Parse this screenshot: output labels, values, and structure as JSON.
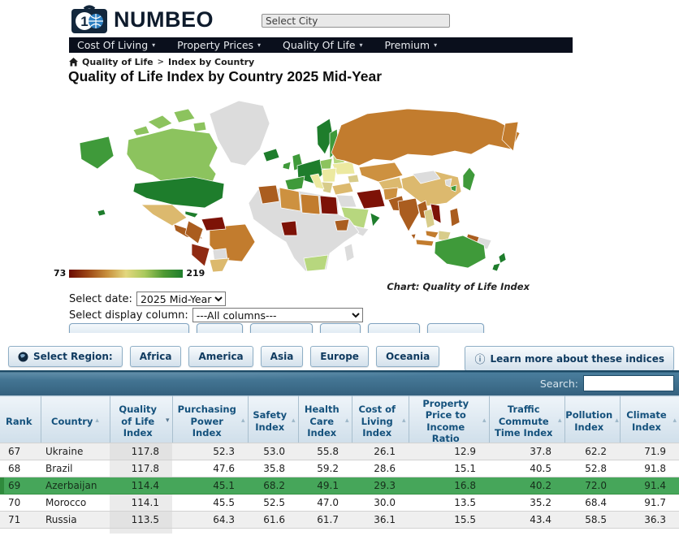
{
  "header": {
    "brand": "NUMBEO",
    "city_placeholder": "Select City"
  },
  "nav": {
    "items": [
      "Cost Of Living",
      "Property Prices",
      "Quality Of Life",
      "Premium"
    ]
  },
  "breadcrumb": {
    "items": [
      "Quality of Life",
      "Index by Country"
    ],
    "separator": ">"
  },
  "page": {
    "title": "Quality of Life Index by Country 2025 Mid-Year"
  },
  "map": {
    "caption": "Chart: Quality of Life Index",
    "legend": {
      "min": "73",
      "max": "219",
      "stops": [
        "#6b0b02",
        "#9c4716",
        "#c78f3c",
        "#e3d77e",
        "#a9c95c",
        "#4f9a33",
        "#1e7d2c"
      ]
    },
    "palette": {
      "dgreen": "#1e7d2c",
      "green": "#3f9a3a",
      "lgreen": "#8cc35e",
      "pgreen": "#b7d77e",
      "pyellow": "#ece9a0",
      "khaki": "#d8cc8a",
      "tan": "#dcb96e",
      "lorange": "#cd9140",
      "orange": "#c27c2e",
      "dorange": "#aa5d1f",
      "dred": "#7d1207",
      "maroon": "#8f2a12",
      "gray": "#dcdcdc"
    }
  },
  "controls": {
    "date_label": "Select date:",
    "date_value": "2025 Mid-Year",
    "column_label": "Select display column:",
    "column_value": "---All columns---"
  },
  "region_bar": {
    "label": "Select Region:",
    "buttons": [
      "Africa",
      "America",
      "Asia",
      "Europe",
      "Oceania"
    ],
    "learn_more": "Learn more about these indices"
  },
  "table": {
    "search_label": "Search:",
    "cell_names": [
      "rank",
      "country",
      "quality-of-life",
      "purchasing-power",
      "safety",
      "health-care",
      "cost-of-living",
      "property-price-income",
      "traffic-commute",
      "pollution",
      "climate"
    ],
    "columns": [
      {
        "label": "Rank",
        "arrow": "",
        "arrow_class": "arr"
      },
      {
        "label": "Country",
        "arrow": "▴",
        "arrow_class": "arr"
      },
      {
        "label": "Quality of Life Index",
        "arrow": "▾",
        "arrow_class": "arr desc"
      },
      {
        "label": "Purchasing Power Index",
        "arrow": "▴",
        "arrow_class": "arr"
      },
      {
        "label": "Safety Index",
        "arrow": "▴",
        "arrow_class": "arr"
      },
      {
        "label": "Health Care Index",
        "arrow": "▴",
        "arrow_class": "arr"
      },
      {
        "label": "Cost of Living Index",
        "arrow": "▴",
        "arrow_class": "arr"
      },
      {
        "label": "Property Price to Income Ratio",
        "arrow": "▴",
        "arrow_class": "arr"
      },
      {
        "label": "Traffic Commute Time Index",
        "arrow": "▴",
        "arrow_class": "arr"
      },
      {
        "label": "Pollution Index",
        "arrow": "▴",
        "arrow_class": "arr"
      },
      {
        "label": "Climate Index",
        "arrow": "▴",
        "arrow_class": "arr"
      }
    ],
    "rows": [
      {
        "rank": "67",
        "country": "Ukraine",
        "values": [
          "117.8",
          "52.3",
          "53.0",
          "55.8",
          "26.1",
          "12.9",
          "37.8",
          "62.2",
          "71.9"
        ],
        "striped": true,
        "highlight": false
      },
      {
        "rank": "68",
        "country": "Brazil",
        "values": [
          "117.8",
          "47.6",
          "35.8",
          "59.2",
          "28.6",
          "15.1",
          "40.5",
          "52.8",
          "91.8"
        ],
        "striped": false,
        "highlight": false
      },
      {
        "rank": "69",
        "country": "Azerbaijan",
        "values": [
          "114.4",
          "45.1",
          "68.2",
          "49.1",
          "29.3",
          "16.8",
          "40.2",
          "72.0",
          "91.4"
        ],
        "striped": false,
        "highlight": true
      },
      {
        "rank": "70",
        "country": "Morocco",
        "values": [
          "114.1",
          "45.5",
          "52.5",
          "47.0",
          "30.0",
          "13.5",
          "35.2",
          "68.4",
          "91.7"
        ],
        "striped": false,
        "highlight": false
      },
      {
        "rank": "71",
        "country": "Russia",
        "values": [
          "113.5",
          "64.3",
          "61.6",
          "61.7",
          "36.1",
          "15.5",
          "43.4",
          "58.5",
          "36.3"
        ],
        "striped": true,
        "highlight": false
      }
    ]
  },
  "colors": {
    "navbar_bg": "#0a0f1c",
    "toolbar_line": "#1d4a66",
    "toolbar_top": "#4a7e9d",
    "toolbar_bottom": "#35617e",
    "header_text": "#14517c",
    "link_navy": "#0f3a5f",
    "highlight": "#46a65a",
    "highlight_border": "#379245",
    "highlight_edge": "#2f8a3c",
    "stripe": "#efefef"
  }
}
